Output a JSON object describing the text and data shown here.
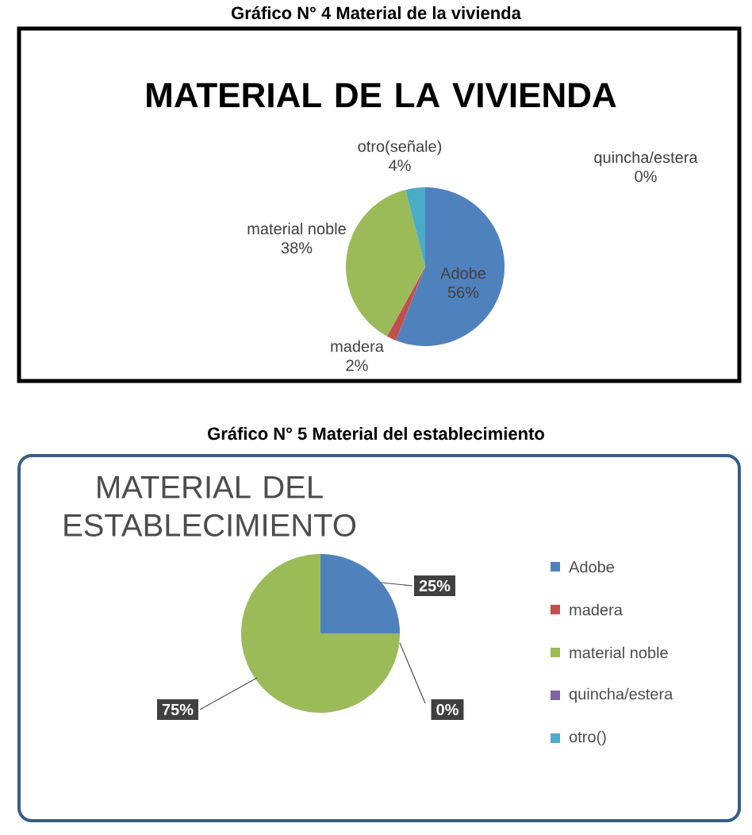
{
  "chart_data": [
    {
      "type": "pie",
      "title": "MATERIAL DE LA VIVIENDA",
      "annotations": [
        "Gráfico N° 4 Material de la vivienda"
      ],
      "categories": [
        "Adobe",
        "madera",
        "material noble",
        "quincha/estera",
        "otro(señale)"
      ],
      "values": [
        56,
        2,
        38,
        0,
        4
      ],
      "value_labels": [
        "56%",
        "2%",
        "38%",
        "0%",
        "4%"
      ],
      "colors": [
        "#4f81bd",
        "#c0504d",
        "#9bbb59",
        "#8064a2",
        "#4bacc6"
      ],
      "legend": false
    },
    {
      "type": "pie",
      "title": "MATERIAL DEL ESTABLECIMIENTO",
      "annotations": [
        "Gráfico N° 5 Material del establecimiento"
      ],
      "categories": [
        "Adobe",
        "madera",
        "material noble",
        "quincha/estera",
        "otro()"
      ],
      "values": [
        25,
        0,
        75,
        0,
        0
      ],
      "value_labels": [
        "25%",
        "0%",
        "75%",
        null,
        null
      ],
      "colors": [
        "#4f81bd",
        "#c0504d",
        "#9bbb59",
        "#8064a2",
        "#4bacc6"
      ],
      "legend": "right"
    }
  ]
}
